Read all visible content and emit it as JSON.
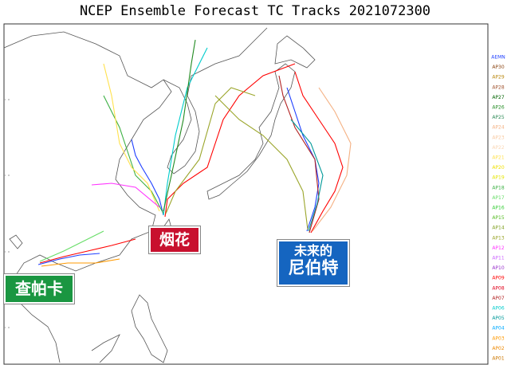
{
  "title": "NCEP Ensemble Forecast TC Tracks 2021072300",
  "legend": [
    {
      "name": "AEMN",
      "color": "#1f3fff"
    },
    {
      "name": "AP30",
      "color": "#8b4513"
    },
    {
      "name": "AP29",
      "color": "#b8860b"
    },
    {
      "name": "AP28",
      "color": "#a0522d"
    },
    {
      "name": "AP27",
      "color": "#006400"
    },
    {
      "name": "AP26",
      "color": "#228b22"
    },
    {
      "name": "AP25",
      "color": "#2e8b57"
    },
    {
      "name": "AP24",
      "color": "#f4b183"
    },
    {
      "name": "AP23",
      "color": "#f8c9a0"
    },
    {
      "name": "AP22",
      "color": "#fad7b5"
    },
    {
      "name": "AP21",
      "color": "#ffe14d"
    },
    {
      "name": "AP20",
      "color": "#f0e000"
    },
    {
      "name": "AP19",
      "color": "#e6e600"
    },
    {
      "name": "AP18",
      "color": "#3cb043"
    },
    {
      "name": "AP17",
      "color": "#66dd66"
    },
    {
      "name": "AP16",
      "color": "#33cc33"
    },
    {
      "name": "AP15",
      "color": "#55bb22"
    },
    {
      "name": "AP14",
      "color": "#7f9f1f"
    },
    {
      "name": "AP13",
      "color": "#9aa52a"
    },
    {
      "name": "AP12",
      "color": "#ff33ff"
    },
    {
      "name": "AP11",
      "color": "#cc66ff"
    },
    {
      "name": "AP10",
      "color": "#9933cc"
    },
    {
      "name": "AP09",
      "color": "#ff0000"
    },
    {
      "name": "AP08",
      "color": "#e0001a"
    },
    {
      "name": "AP07",
      "color": "#b22222"
    },
    {
      "name": "AP06",
      "color": "#00cccc"
    },
    {
      "name": "AP05",
      "color": "#009999"
    },
    {
      "name": "AP04",
      "color": "#00aaff"
    },
    {
      "name": "AP03",
      "color": "#ff9900"
    },
    {
      "name": "AP02",
      "color": "#ee8800"
    },
    {
      "name": "AP01",
      "color": "#cc7700"
    }
  ],
  "storms": {
    "in_fa": "烟花",
    "cempaka": "查帕卡",
    "nepartak_line1": "未来的",
    "nepartak_line2": "尼伯特"
  }
}
